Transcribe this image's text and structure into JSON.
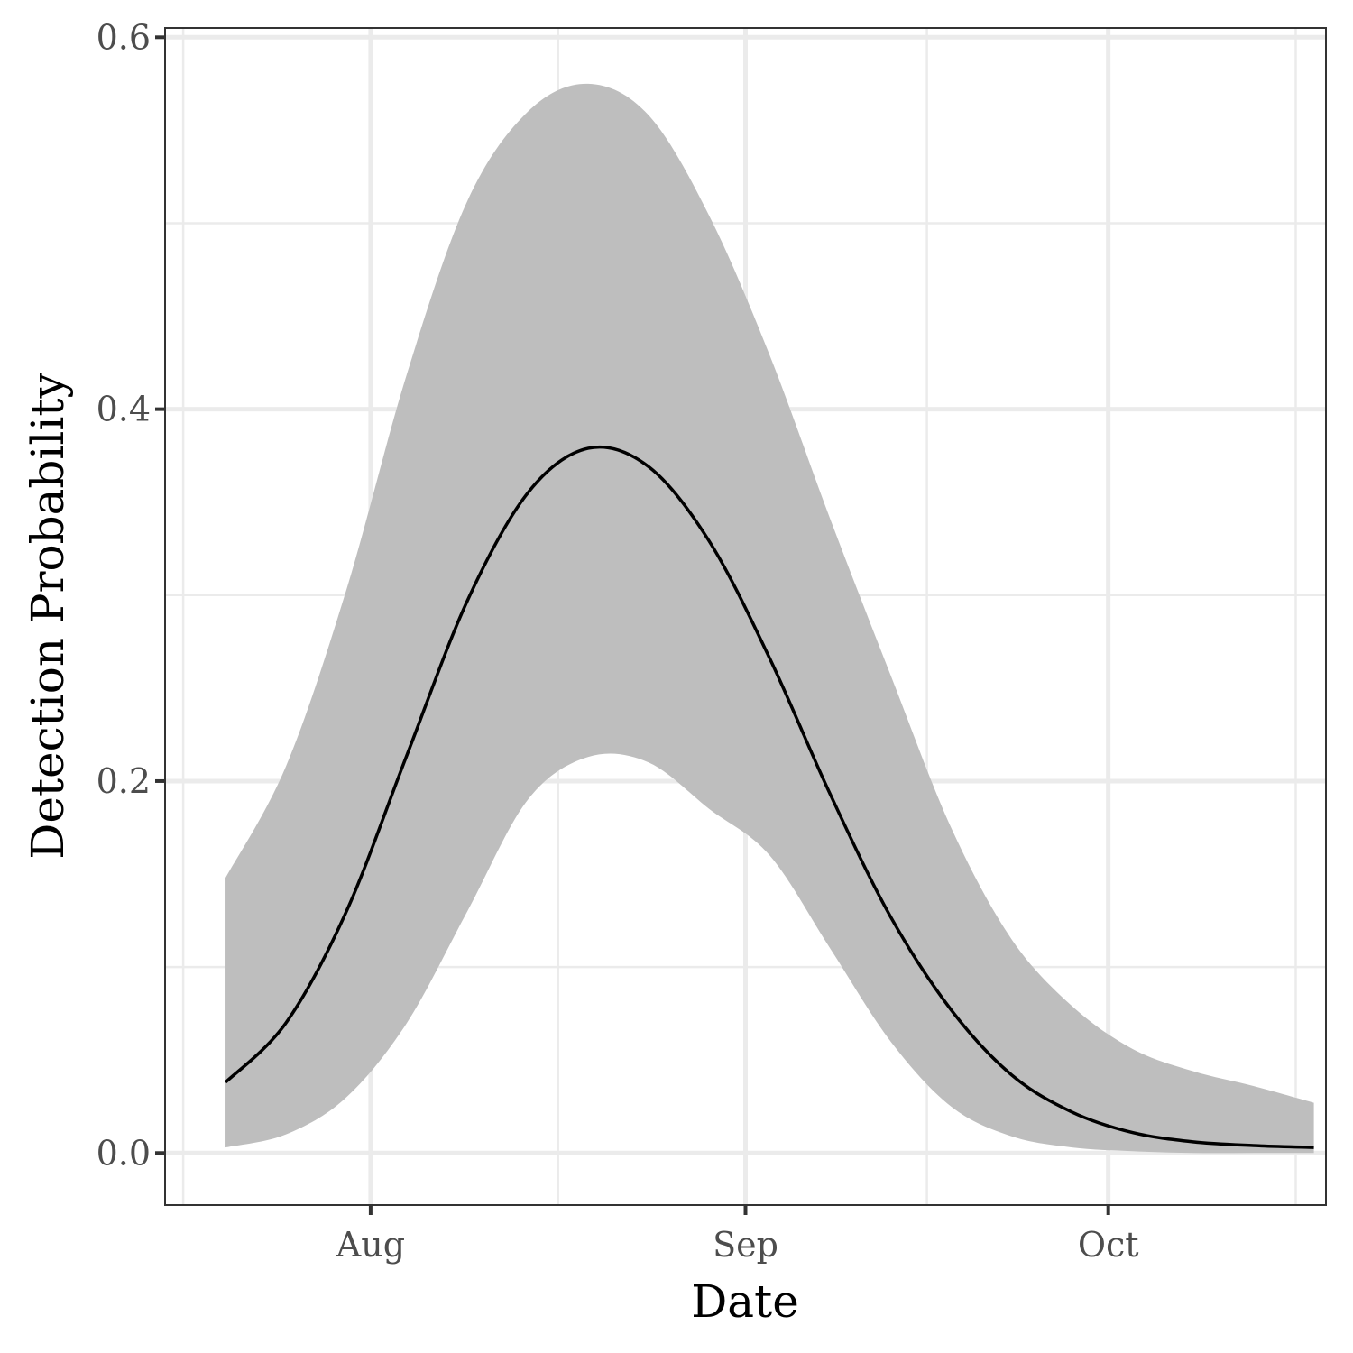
{
  "chart_data": {
    "type": "line",
    "title": "",
    "xlabel": "Date",
    "ylabel": "Detection Probability",
    "x_axis": {
      "kind": "date",
      "range": [
        "2021-07-15",
        "2021-10-19"
      ],
      "ticks": [
        {
          "label": "Aug",
          "date": "2021-08-01"
        },
        {
          "label": "Sep",
          "date": "2021-09-01"
        },
        {
          "label": "Oct",
          "date": "2021-10-01"
        }
      ]
    },
    "y_axis": {
      "range": [
        -0.028,
        0.605
      ],
      "ticks": [
        0.0,
        0.2,
        0.4,
        0.6
      ],
      "tick_labels": [
        "0.0",
        "0.2",
        "0.4",
        "0.6"
      ]
    },
    "grid": true,
    "legend": "none",
    "series": [
      {
        "role": "estimate",
        "x": [
          "2021-07-20",
          "2021-07-25",
          "2021-07-30",
          "2021-08-04",
          "2021-08-09",
          "2021-08-14",
          "2021-08-19",
          "2021-08-24",
          "2021-08-29",
          "2021-09-03",
          "2021-09-08",
          "2021-09-13",
          "2021-09-18",
          "2021-09-23",
          "2021-09-28",
          "2021-10-03",
          "2021-10-08",
          "2021-10-13",
          "2021-10-18"
        ],
        "y": [
          0.038,
          0.07,
          0.13,
          0.214,
          0.297,
          0.355,
          0.379,
          0.369,
          0.329,
          0.266,
          0.193,
          0.127,
          0.077,
          0.042,
          0.022,
          0.011,
          0.006,
          0.004,
          0.003
        ]
      },
      {
        "role": "ci_upper",
        "x": [
          "2021-07-20",
          "2021-07-25",
          "2021-07-30",
          "2021-08-04",
          "2021-08-09",
          "2021-08-14",
          "2021-08-19",
          "2021-08-24",
          "2021-08-29",
          "2021-09-03",
          "2021-09-08",
          "2021-09-13",
          "2021-09-18",
          "2021-09-23",
          "2021-09-28",
          "2021-10-03",
          "2021-10-08",
          "2021-10-13",
          "2021-10-18"
        ],
        "y": [
          0.148,
          0.208,
          0.303,
          0.419,
          0.512,
          0.56,
          0.575,
          0.558,
          0.504,
          0.429,
          0.341,
          0.257,
          0.175,
          0.115,
          0.079,
          0.056,
          0.044,
          0.036,
          0.027
        ]
      },
      {
        "role": "ci_lower",
        "x": [
          "2021-07-20",
          "2021-07-25",
          "2021-07-30",
          "2021-08-04",
          "2021-08-09",
          "2021-08-14",
          "2021-08-19",
          "2021-08-24",
          "2021-08-29",
          "2021-09-03",
          "2021-09-08",
          "2021-09-13",
          "2021-09-18",
          "2021-09-23",
          "2021-09-28",
          "2021-10-03",
          "2021-10-08",
          "2021-10-13",
          "2021-10-18"
        ],
        "y": [
          0.003,
          0.01,
          0.03,
          0.07,
          0.13,
          0.19,
          0.213,
          0.21,
          0.185,
          0.16,
          0.11,
          0.06,
          0.025,
          0.009,
          0.003,
          0.001,
          0.0,
          0.0,
          0.0
        ]
      }
    ]
  }
}
